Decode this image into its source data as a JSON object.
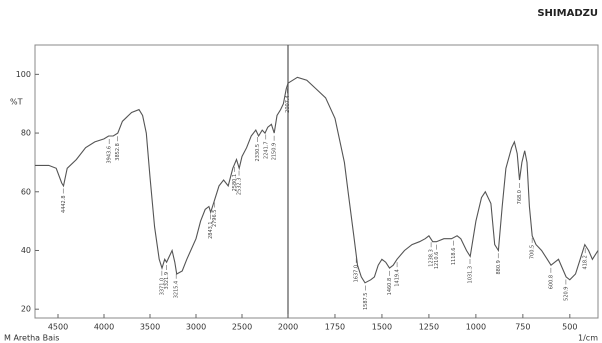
{
  "chart_data": {
    "type": "line",
    "brand": "SHIMADZU",
    "y_label": "%T",
    "x_label": "1/cm",
    "sample_label": "M Aretha Bais",
    "xlim": [
      4750,
      350
    ],
    "x_scale_change": 2000,
    "xticks": [
      4500,
      4000,
      3500,
      3000,
      2500,
      2000,
      1750,
      1500,
      1250,
      1000,
      750,
      500
    ],
    "ylim": [
      17,
      110
    ],
    "yticks": [
      20,
      40,
      60,
      80,
      100
    ],
    "series": [
      {
        "color": "#555555",
        "x": [
          4750,
          4600,
          4520,
          4460,
          4440,
          4400,
          4300,
          4200,
          4100,
          4000,
          3950,
          3900,
          3850,
          3800,
          3700,
          3620,
          3580,
          3540,
          3500,
          3450,
          3400,
          3370,
          3340,
          3320,
          3290,
          3260,
          3230,
          3210,
          3150,
          3100,
          3000,
          2950,
          2900,
          2860,
          2840,
          2800,
          2750,
          2700,
          2650,
          2600,
          2560,
          2530,
          2500,
          2450,
          2400,
          2350,
          2320,
          2280,
          2250,
          2220,
          2180,
          2150,
          2120,
          2080,
          2050,
          2020,
          2000,
          1950,
          1900,
          1850,
          1800,
          1750,
          1700,
          1680,
          1650,
          1630,
          1610,
          1590,
          1560,
          1540,
          1520,
          1500,
          1480,
          1460,
          1440,
          1420,
          1380,
          1340,
          1300,
          1270,
          1250,
          1230,
          1210,
          1170,
          1130,
          1100,
          1080,
          1050,
          1030,
          1000,
          970,
          950,
          920,
          900,
          880,
          860,
          840,
          810,
          795,
          780,
          768,
          755,
          740,
          728,
          715,
          700,
          680,
          650,
          620,
          600,
          580,
          560,
          540,
          520,
          500,
          470,
          440,
          420,
          400,
          380,
          350
        ],
        "values": [
          69,
          69,
          68,
          63,
          62,
          68,
          71,
          75,
          77,
          78,
          79,
          79,
          80,
          84,
          87,
          88,
          86,
          80,
          65,
          48,
          37,
          34,
          37,
          36,
          38,
          40,
          36,
          32,
          33,
          37,
          44,
          50,
          54,
          55,
          53,
          57,
          62,
          64,
          62,
          68,
          71,
          68,
          72,
          75,
          79,
          81,
          79,
          81,
          80,
          82,
          83,
          80,
          86,
          88,
          90,
          95,
          97,
          99,
          98,
          95,
          92,
          85,
          70,
          60,
          45,
          35,
          31,
          29,
          30,
          31,
          35,
          37,
          36,
          34,
          35,
          37,
          40,
          42,
          43,
          44,
          45,
          43,
          43,
          44,
          44,
          45,
          44,
          40,
          38,
          50,
          58,
          60,
          56,
          42,
          40,
          55,
          68,
          75,
          77,
          73,
          64,
          70,
          74,
          70,
          55,
          45,
          42,
          40,
          37,
          35,
          36,
          37,
          34,
          31,
          30,
          32,
          38,
          42,
          40,
          37,
          40
        ]
      }
    ],
    "peaks": [
      {
        "value": 4442.8,
        "label": "4442.8"
      },
      {
        "value": 3943.6,
        "label": "3943.6"
      },
      {
        "value": 3852.8,
        "label": "3852.8"
      },
      {
        "value": 3371.0,
        "label": "3371.0"
      },
      {
        "value": 3321.9,
        "label": "3321.9"
      },
      {
        "value": 3215.4,
        "label": "3215.4"
      },
      {
        "value": 2843.1,
        "label": "2843.1"
      },
      {
        "value": 2796.5,
        "label": "2796.5"
      },
      {
        "value": 2580.1,
        "label": "2580.1"
      },
      {
        "value": 2532.3,
        "label": "2532.3"
      },
      {
        "value": 2330.5,
        "label": "2330.5"
      },
      {
        "value": 2241.7,
        "label": "2241.7"
      },
      {
        "value": 2150.9,
        "label": "2150.9"
      },
      {
        "value": 2007.4,
        "label": "2007.4"
      },
      {
        "value": 1637.0,
        "label": "1637.0"
      },
      {
        "value": 1587.5,
        "label": "1587.5"
      },
      {
        "value": 1460.8,
        "label": "1460.8"
      },
      {
        "value": 1419.4,
        "label": "1419.4"
      },
      {
        "value": 1238.3,
        "label": "1238.3"
      },
      {
        "value": 1210.6,
        "label": "1210.6"
      },
      {
        "value": 1118.6,
        "label": "1118.6"
      },
      {
        "value": 1031.3,
        "label": "1031.3"
      },
      {
        "value": 880.9,
        "label": "880.9"
      },
      {
        "value": 768.0,
        "label": "768.0"
      },
      {
        "value": 700.5,
        "label": "700.5"
      },
      {
        "value": 600.8,
        "label": "600.8"
      },
      {
        "value": 520.9,
        "label": "520.9"
      },
      {
        "value": 418.2,
        "label": "418.2"
      }
    ]
  }
}
